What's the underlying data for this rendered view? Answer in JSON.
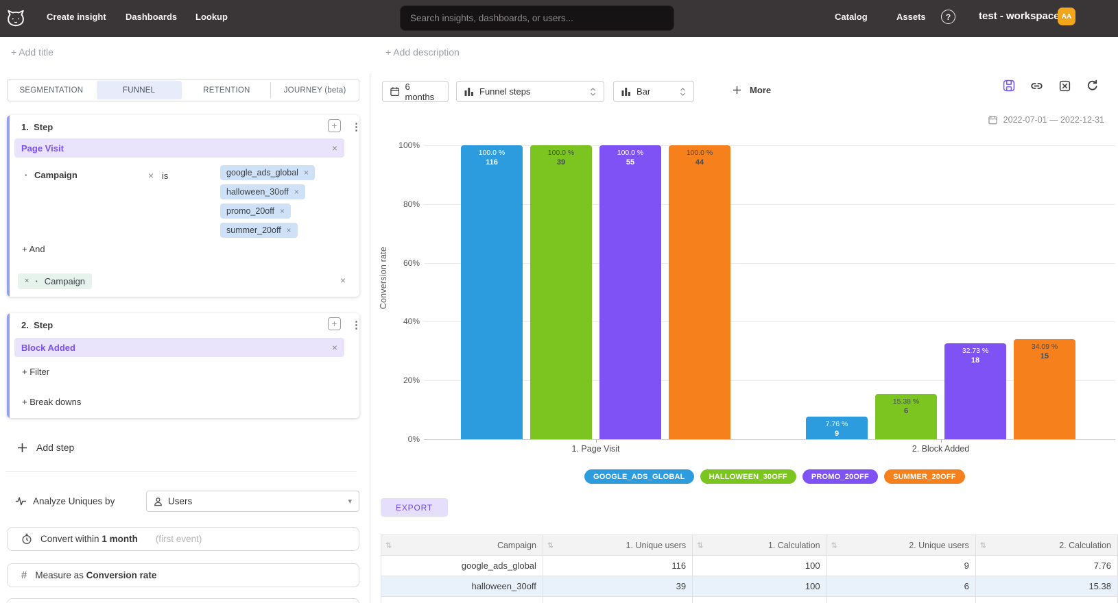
{
  "nav": {
    "logo": "cat-logo",
    "items": [
      {
        "label": "Create insight"
      },
      {
        "label": "Dashboards"
      },
      {
        "label": "Lookup"
      }
    ],
    "search_placeholder": "Search insights, dashboards, or users...",
    "catalog": "Catalog",
    "assets": "Assets",
    "workspace": "test - workspace",
    "avatar_initials": "AA",
    "avatar_color": "#f2a71b"
  },
  "toolbar": {
    "add_title": "+ Add title",
    "add_description": "+ Add description"
  },
  "icons": {
    "kebab": "⋮",
    "close": "×",
    "bullet": "·",
    "plus": "+",
    "caret_down": "▾",
    "sort": "⇅",
    "help": "?"
  },
  "tabs": {
    "items": [
      "SEGMENTATION",
      "FUNNEL",
      "RETENTION",
      "JOURNEY (beta)"
    ],
    "active": "FUNNEL"
  },
  "funnel": {
    "steps": [
      {
        "number": "1.",
        "label": "Step",
        "event": "Page Visit",
        "filter": {
          "property": "Campaign",
          "operator": "is",
          "values": [
            "google_ads_global",
            "halloween_30off",
            "promo_20off",
            "summer_20off"
          ]
        },
        "and_label": "+ And",
        "breakdown": {
          "property": "Campaign"
        }
      },
      {
        "number": "2.",
        "label": "Step",
        "event": "Block Added",
        "filter_label": "+ Filter",
        "breakdowns_label": "+ Break downs"
      }
    ],
    "add_step_label": "Add step",
    "analyze": {
      "label": "Analyze Uniques by",
      "value": "Users"
    },
    "conversion_window": {
      "prefix": "Convert within",
      "value": "1 month",
      "hint": "(first event)"
    },
    "measure": {
      "prefix": "Measure as",
      "value": "Conversion rate"
    }
  },
  "chart_controls": {
    "time_window": "6 months",
    "breakdown_mode": "Funnel steps",
    "chart_type": "Bar",
    "more_label": "More",
    "date_range": "2022-07-01 — 2022-12-31"
  },
  "chart_data": {
    "type": "bar",
    "title": "",
    "ylabel": "Conversion rate",
    "yticks": [
      "0%",
      "20%",
      "40%",
      "60%",
      "80%",
      "100%"
    ],
    "ylim": [
      0,
      100
    ],
    "grid": true,
    "legend_position": "bottom",
    "categories": [
      "1. Page Visit",
      "2. Block Added"
    ],
    "series": [
      {
        "name": "google_ads_global",
        "legend": "GOOGLE_ADS_GLOBAL",
        "color": "#2d9cdf",
        "values": [
          100.0,
          7.76
        ],
        "value_labels": [
          "100.0 %",
          "7.76 %"
        ],
        "counts": [
          116,
          9
        ]
      },
      {
        "name": "halloween_30off",
        "legend": "HALLOWEEN_30OFF",
        "color": "#7cc41f",
        "values": [
          100.0,
          15.38
        ],
        "value_labels": [
          "100.0 %",
          "15.38 %"
        ],
        "counts": [
          39,
          6
        ]
      },
      {
        "name": "promo_20off",
        "legend": "PROMO_20OFF",
        "color": "#7e52f5",
        "values": [
          100.0,
          32.73
        ],
        "value_labels": [
          "100.0 %",
          "32.73 %"
        ],
        "counts": [
          55,
          18
        ]
      },
      {
        "name": "summer_20off",
        "legend": "SUMMER_20OFF",
        "color": "#f5801c",
        "values": [
          100.0,
          34.09
        ],
        "value_labels": [
          "100.0 %",
          "34.09 %"
        ],
        "counts": [
          44,
          15
        ]
      }
    ]
  },
  "export_label": "EXPORT",
  "table": {
    "headers": [
      "Campaign",
      "1. Unique users",
      "1. Calculation",
      "2. Unique users",
      "2. Calculation"
    ],
    "rows": [
      [
        "google_ads_global",
        "116",
        "100",
        "9",
        "7.76"
      ],
      [
        "halloween_30off",
        "39",
        "100",
        "6",
        "15.38"
      ]
    ]
  }
}
